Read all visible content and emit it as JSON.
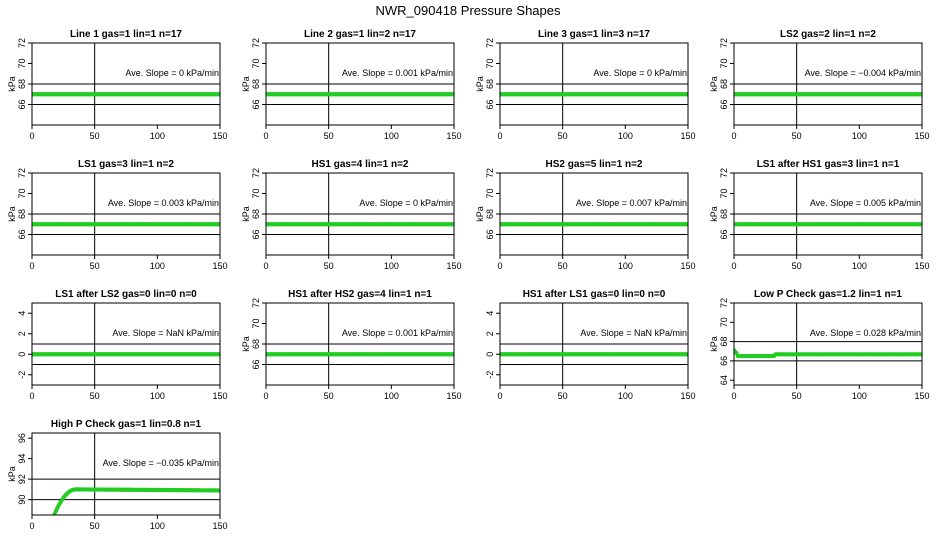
{
  "title": "NWR_090418  Pressure Shapes",
  "x_ticks": [
    0,
    50,
    100,
    150
  ],
  "slope_prefix": "Ave. Slope =",
  "slope_unit": "kPa/min",
  "series_color": "#22cc22",
  "chart_data": [
    {
      "type": "scatter",
      "title": "Line 1 gas=1 lin=1 n=17",
      "ylabel": "kPa",
      "xlim": [
        0,
        150
      ],
      "ylim": [
        64,
        72
      ],
      "yticks": [
        66,
        68,
        70,
        72
      ],
      "hlines": [
        66,
        68
      ],
      "vline": 50,
      "slope": "0",
      "shape": "flat",
      "level": 67
    },
    {
      "type": "scatter",
      "title": "Line 2 gas=1 lin=2 n=17",
      "ylabel": "kPa",
      "xlim": [
        0,
        150
      ],
      "ylim": [
        64,
        72
      ],
      "yticks": [
        66,
        68,
        70,
        72
      ],
      "hlines": [
        66,
        68
      ],
      "vline": 50,
      "slope": "0.001",
      "shape": "flat",
      "level": 67
    },
    {
      "type": "scatter",
      "title": "Line 3 gas=1 lin=3 n=17",
      "ylabel": "kPa",
      "xlim": [
        0,
        150
      ],
      "ylim": [
        64,
        72
      ],
      "yticks": [
        66,
        68,
        70,
        72
      ],
      "hlines": [
        66,
        68
      ],
      "vline": 50,
      "slope": "0",
      "shape": "flat",
      "level": 67
    },
    {
      "type": "scatter",
      "title": "LS2 gas=2 lin=1 n=2",
      "ylabel": "kPa",
      "xlim": [
        0,
        150
      ],
      "ylim": [
        64,
        72
      ],
      "yticks": [
        66,
        68,
        70,
        72
      ],
      "hlines": [
        66,
        68
      ],
      "vline": 50,
      "slope": "−0.004",
      "shape": "flat",
      "level": 67
    },
    {
      "type": "scatter",
      "title": "LS1 gas=3 lin=1 n=2",
      "ylabel": "kPa",
      "xlim": [
        0,
        150
      ],
      "ylim": [
        64,
        72
      ],
      "yticks": [
        66,
        68,
        70,
        72
      ],
      "hlines": [
        66,
        68
      ],
      "vline": 50,
      "slope": "0.003",
      "shape": "flat",
      "level": 67
    },
    {
      "type": "scatter",
      "title": "HS1 gas=4 lin=1 n=2",
      "ylabel": "kPa",
      "xlim": [
        0,
        150
      ],
      "ylim": [
        64,
        72
      ],
      "yticks": [
        66,
        68,
        70,
        72
      ],
      "hlines": [
        66,
        68
      ],
      "vline": 50,
      "slope": "0",
      "shape": "flat",
      "level": 67
    },
    {
      "type": "scatter",
      "title": "HS2 gas=5 lin=1 n=2",
      "ylabel": "kPa",
      "xlim": [
        0,
        150
      ],
      "ylim": [
        64,
        72
      ],
      "yticks": [
        66,
        68,
        70,
        72
      ],
      "hlines": [
        66,
        68
      ],
      "vline": 50,
      "slope": "0.007",
      "shape": "flat",
      "level": 67
    },
    {
      "type": "scatter",
      "title": "LS1 after HS1 gas=3 lin=1 n=1",
      "ylabel": "kPa",
      "xlim": [
        0,
        150
      ],
      "ylim": [
        64,
        72
      ],
      "yticks": [
        66,
        68,
        70,
        72
      ],
      "hlines": [
        66,
        68
      ],
      "vline": 50,
      "slope": "0.005",
      "shape": "flat",
      "level": 67
    },
    {
      "type": "scatter",
      "title": "LS1 after LS2 gas=0 lin=0 n=0",
      "ylabel": "",
      "xlim": [
        0,
        150
      ],
      "ylim": [
        -3,
        5
      ],
      "yticks": [
        -2,
        0,
        2,
        4
      ],
      "hlines": [
        -1,
        1
      ],
      "vline": 50,
      "slope": "NaN",
      "shape": "flat",
      "level": 0
    },
    {
      "type": "scatter",
      "title": "HS1 after HS2 gas=4 lin=1 n=1",
      "ylabel": "kPa",
      "xlim": [
        0,
        150
      ],
      "ylim": [
        64,
        72
      ],
      "yticks": [
        66,
        68,
        70,
        72
      ],
      "hlines": [
        66,
        68
      ],
      "vline": 50,
      "slope": "0.001",
      "shape": "flat",
      "level": 67
    },
    {
      "type": "scatter",
      "title": "HS1 after LS1 gas=0 lin=0 n=0",
      "ylabel": "",
      "xlim": [
        0,
        150
      ],
      "ylim": [
        -3,
        5
      ],
      "yticks": [
        -2,
        0,
        2,
        4
      ],
      "hlines": [
        -1,
        1
      ],
      "vline": 50,
      "slope": "NaN",
      "shape": "flat",
      "level": 0
    },
    {
      "type": "scatter",
      "title": "Low P Check gas=1.2 lin=1 n=1",
      "ylabel": "kPa",
      "xlim": [
        0,
        150
      ],
      "ylim": [
        63.5,
        72
      ],
      "yticks": [
        64,
        66,
        68,
        70,
        72
      ],
      "hlines": [
        66,
        68
      ],
      "vline": 50,
      "slope": "0.028",
      "shape": "lowp",
      "level": 66.7
    },
    {
      "type": "scatter",
      "title": "High P Check gas=1 lin=0.8 n=1",
      "ylabel": "kPa",
      "xlim": [
        0,
        150
      ],
      "ylim": [
        88.5,
        96.5
      ],
      "yticks": [
        90,
        92,
        94,
        96
      ],
      "hlines": [
        90,
        92
      ],
      "vline": 50,
      "slope": "−0.035",
      "shape": "highp",
      "level": 91
    }
  ]
}
